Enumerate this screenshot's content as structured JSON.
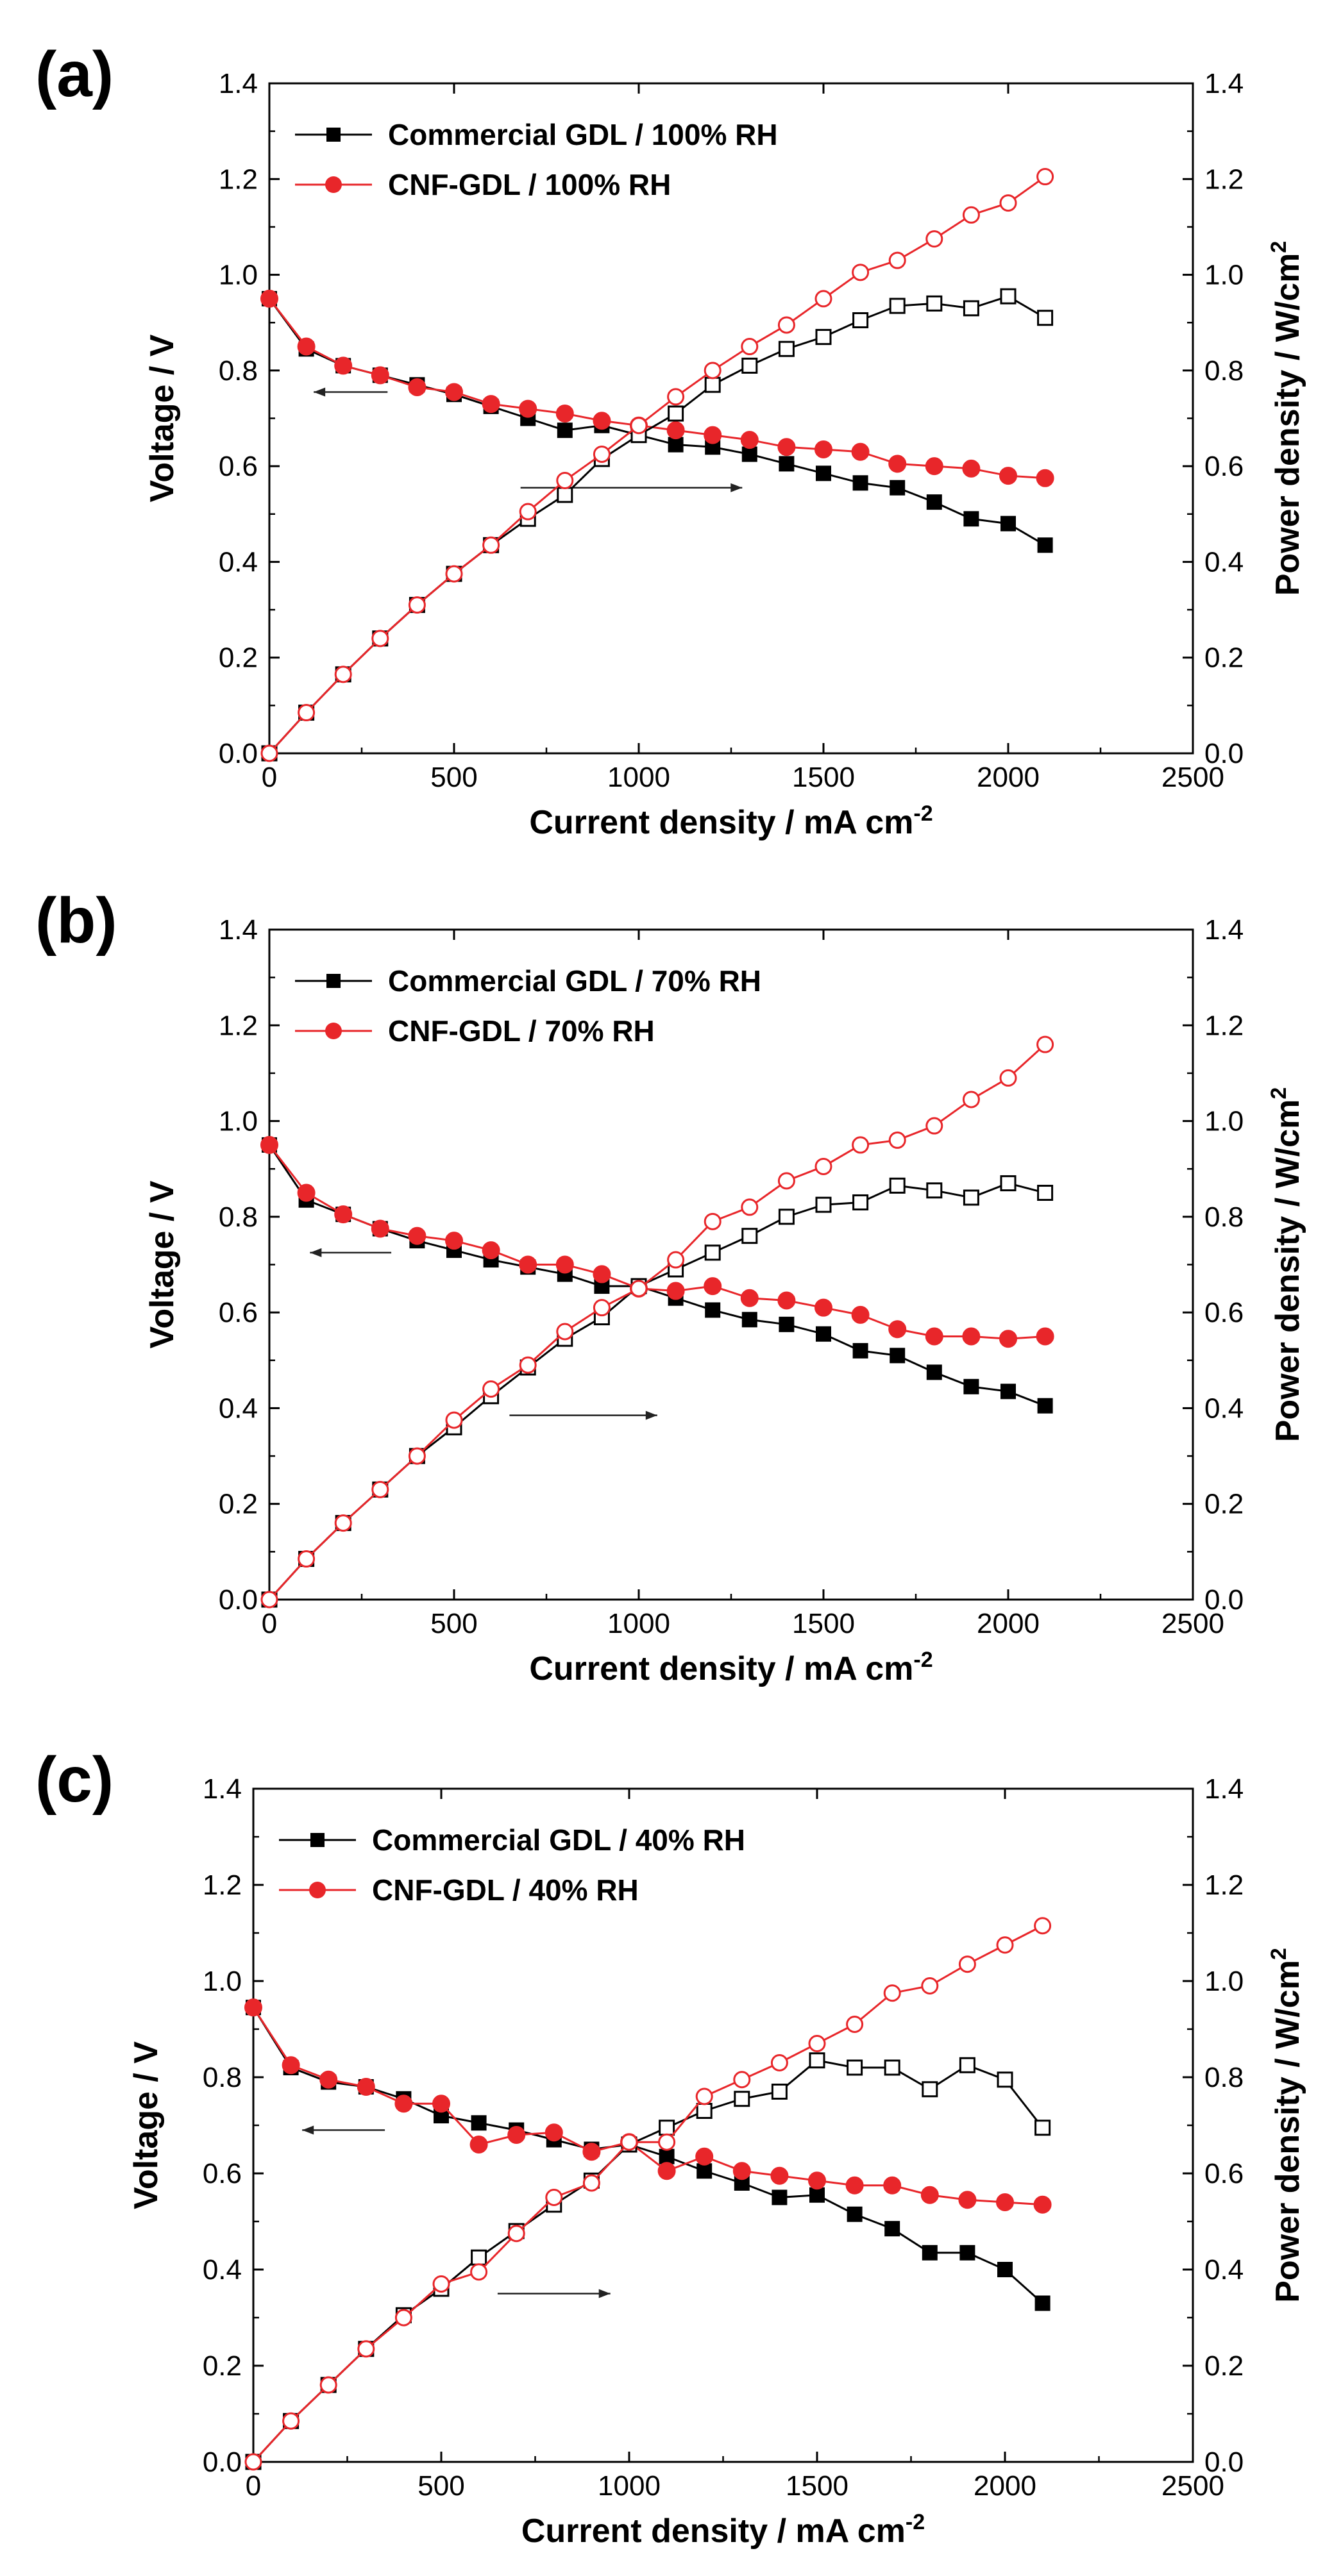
{
  "chart_data": [
    {
      "type": "line",
      "panel_label": "(a)",
      "xlabel": "Current density / mA cm",
      "xlabel_sup": "-2",
      "ylabel": "Voltage / V",
      "y2label": "Power density / W/cm",
      "y2label_sup": "2",
      "xlim": [
        0,
        2500
      ],
      "ylim": [
        0,
        1.4
      ],
      "y2lim": [
        0,
        1.4
      ],
      "xticks": [
        "0",
        "500",
        "1000",
        "1500",
        "2000",
        "2500"
      ],
      "yticks": [
        "0.0",
        "0.2",
        "0.4",
        "0.6",
        "0.8",
        "1.0",
        "1.2",
        "1.4"
      ],
      "y2ticks": [
        "0.0",
        "0.2",
        "0.4",
        "0.6",
        "0.8",
        "1.0",
        "1.2",
        "1.4"
      ],
      "legend_position": "top-left",
      "x": [
        0,
        100,
        200,
        300,
        400,
        500,
        600,
        700,
        800,
        900,
        1000,
        1100,
        1200,
        1300,
        1400,
        1500,
        1600,
        1700,
        1800,
        1900,
        2000,
        2100
      ],
      "series": [
        {
          "name": "Commercial GDL / 100% RH",
          "color": "#000000",
          "marker": "square",
          "axis": "left",
          "in_legend": true,
          "values": [
            0.95,
            0.845,
            0.81,
            0.79,
            0.77,
            0.75,
            0.725,
            0.7,
            0.675,
            0.685,
            0.665,
            0.645,
            0.64,
            0.625,
            0.605,
            0.585,
            0.565,
            0.555,
            0.525,
            0.49,
            0.48,
            0.435
          ]
        },
        {
          "name": "CNF-GDL / 100% RH",
          "color": "#e8262a",
          "marker": "circle",
          "axis": "left",
          "in_legend": true,
          "values": [
            0.95,
            0.85,
            0.81,
            0.79,
            0.765,
            0.755,
            0.73,
            0.72,
            0.71,
            0.695,
            0.685,
            0.675,
            0.665,
            0.655,
            0.64,
            0.635,
            0.63,
            0.605,
            0.6,
            0.595,
            0.58,
            0.575
          ]
        },
        {
          "name": "Commercial GDL / 100% RH (power)",
          "color": "#000000",
          "marker": "open-square",
          "axis": "right",
          "in_legend": false,
          "values": [
            0.0,
            0.085,
            0.165,
            0.24,
            0.31,
            0.375,
            0.435,
            0.49,
            0.54,
            0.615,
            0.665,
            0.71,
            0.77,
            0.81,
            0.845,
            0.87,
            0.905,
            0.935,
            0.94,
            0.93,
            0.955,
            0.91
          ]
        },
        {
          "name": "CNF-GDL / 100% RH (power)",
          "color": "#e8262a",
          "marker": "open-circle",
          "axis": "right",
          "in_legend": false,
          "values": [
            0.0,
            0.085,
            0.165,
            0.24,
            0.31,
            0.375,
            0.435,
            0.505,
            0.57,
            0.625,
            0.685,
            0.745,
            0.8,
            0.85,
            0.895,
            0.95,
            1.005,
            1.03,
            1.075,
            1.125,
            1.15,
            1.205
          ]
        }
      ]
    },
    {
      "type": "line",
      "panel_label": "(b)",
      "xlabel": "Current density / mA cm",
      "xlabel_sup": "-2",
      "ylabel": "Voltage / V",
      "y2label": "Power density / W/cm",
      "y2label_sup": "2",
      "xlim": [
        0,
        2500
      ],
      "ylim": [
        0,
        1.4
      ],
      "y2lim": [
        0,
        1.4
      ],
      "xticks": [
        "0",
        "500",
        "1000",
        "1500",
        "2000",
        "2500"
      ],
      "yticks": [
        "0.0",
        "0.2",
        "0.4",
        "0.6",
        "0.8",
        "1.0",
        "1.2",
        "1.4"
      ],
      "y2ticks": [
        "0.0",
        "0.2",
        "0.4",
        "0.6",
        "0.8",
        "1.0",
        "1.2",
        "1.4"
      ],
      "legend_position": "top-left",
      "x": [
        0,
        100,
        200,
        300,
        400,
        500,
        600,
        700,
        800,
        900,
        1000,
        1100,
        1200,
        1300,
        1400,
        1500,
        1600,
        1700,
        1800,
        1900,
        2000,
        2100
      ],
      "series": [
        {
          "name": "Commercial GDL / 70% RH",
          "color": "#000000",
          "marker": "square",
          "axis": "left",
          "in_legend": true,
          "values": [
            0.95,
            0.835,
            0.805,
            0.775,
            0.75,
            0.73,
            0.71,
            0.695,
            0.68,
            0.655,
            0.655,
            0.63,
            0.605,
            0.585,
            0.575,
            0.555,
            0.52,
            0.51,
            0.475,
            0.445,
            0.435,
            0.405
          ]
        },
        {
          "name": "CNF-GDL / 70% RH",
          "color": "#e8262a",
          "marker": "circle",
          "axis": "left",
          "in_legend": true,
          "values": [
            0.95,
            0.85,
            0.805,
            0.775,
            0.76,
            0.75,
            0.73,
            0.7,
            0.7,
            0.68,
            0.65,
            0.645,
            0.655,
            0.63,
            0.625,
            0.61,
            0.595,
            0.565,
            0.55,
            0.55,
            0.545,
            0.55
          ]
        },
        {
          "name": "Commercial GDL / 70% RH (power)",
          "color": "#000000",
          "marker": "open-square",
          "axis": "right",
          "in_legend": false,
          "values": [
            0.0,
            0.085,
            0.16,
            0.23,
            0.3,
            0.36,
            0.425,
            0.485,
            0.545,
            0.59,
            0.655,
            0.69,
            0.725,
            0.76,
            0.8,
            0.825,
            0.83,
            0.865,
            0.855,
            0.84,
            0.87,
            0.85
          ]
        },
        {
          "name": "CNF-GDL / 70% RH (power)",
          "color": "#e8262a",
          "marker": "open-circle",
          "axis": "right",
          "in_legend": false,
          "values": [
            0.0,
            0.085,
            0.16,
            0.23,
            0.3,
            0.375,
            0.44,
            0.49,
            0.56,
            0.61,
            0.65,
            0.71,
            0.79,
            0.82,
            0.875,
            0.905,
            0.95,
            0.96,
            0.99,
            1.045,
            1.09,
            1.16
          ]
        }
      ]
    },
    {
      "type": "line",
      "panel_label": "(c)",
      "xlabel": "Current density / mA cm",
      "xlabel_sup": "-2",
      "ylabel": "Voltage / V",
      "y2label": "Power density / W/cm",
      "y2label_sup": "2",
      "xlim": [
        0,
        2500
      ],
      "ylim": [
        0,
        1.4
      ],
      "y2lim": [
        0,
        1.4
      ],
      "xticks": [
        "0",
        "500",
        "1000",
        "1500",
        "2000",
        "2500"
      ],
      "yticks": [
        "0.0",
        "0.2",
        "0.4",
        "0.6",
        "0.8",
        "1.0",
        "1.2",
        "1.4"
      ],
      "y2ticks": [
        "0.0",
        "0.2",
        "0.4",
        "0.6",
        "0.8",
        "1.0",
        "1.2",
        "1.4"
      ],
      "legend_position": "top-left",
      "x": [
        0,
        100,
        200,
        300,
        400,
        500,
        600,
        700,
        800,
        900,
        1000,
        1100,
        1200,
        1300,
        1400,
        1500,
        1600,
        1700,
        1800,
        1900,
        2000,
        2100
      ],
      "series": [
        {
          "name": "Commercial GDL / 40% RH",
          "color": "#000000",
          "marker": "square",
          "axis": "left",
          "in_legend": true,
          "values": [
            0.945,
            0.82,
            0.79,
            0.78,
            0.755,
            0.72,
            0.705,
            0.69,
            0.67,
            0.65,
            0.66,
            0.635,
            0.605,
            0.58,
            0.55,
            0.555,
            0.515,
            0.485,
            0.435,
            0.435,
            0.4,
            0.33
          ]
        },
        {
          "name": "CNF-GDL / 40% RH",
          "color": "#e8262a",
          "marker": "circle",
          "axis": "left",
          "in_legend": true,
          "values": [
            0.945,
            0.825,
            0.795,
            0.78,
            0.745,
            0.745,
            0.66,
            0.68,
            0.685,
            0.645,
            0.665,
            0.605,
            0.635,
            0.605,
            0.595,
            0.585,
            0.575,
            0.575,
            0.555,
            0.545,
            0.54,
            0.535
          ]
        },
        {
          "name": "Commercial GDL / 40% RH (power)",
          "color": "#000000",
          "marker": "open-square",
          "axis": "right",
          "in_legend": false,
          "values": [
            0.0,
            0.085,
            0.16,
            0.235,
            0.305,
            0.36,
            0.425,
            0.48,
            0.535,
            0.585,
            0.66,
            0.695,
            0.73,
            0.755,
            0.77,
            0.835,
            0.82,
            0.82,
            0.775,
            0.825,
            0.795,
            0.695
          ]
        },
        {
          "name": "CNF-GDL / 40% RH (power)",
          "color": "#e8262a",
          "marker": "open-circle",
          "axis": "right",
          "in_legend": false,
          "values": [
            0.0,
            0.085,
            0.16,
            0.235,
            0.3,
            0.37,
            0.395,
            0.475,
            0.55,
            0.58,
            0.665,
            0.665,
            0.76,
            0.795,
            0.83,
            0.87,
            0.91,
            0.975,
            0.99,
            1.035,
            1.075,
            1.115
          ]
        }
      ]
    }
  ]
}
